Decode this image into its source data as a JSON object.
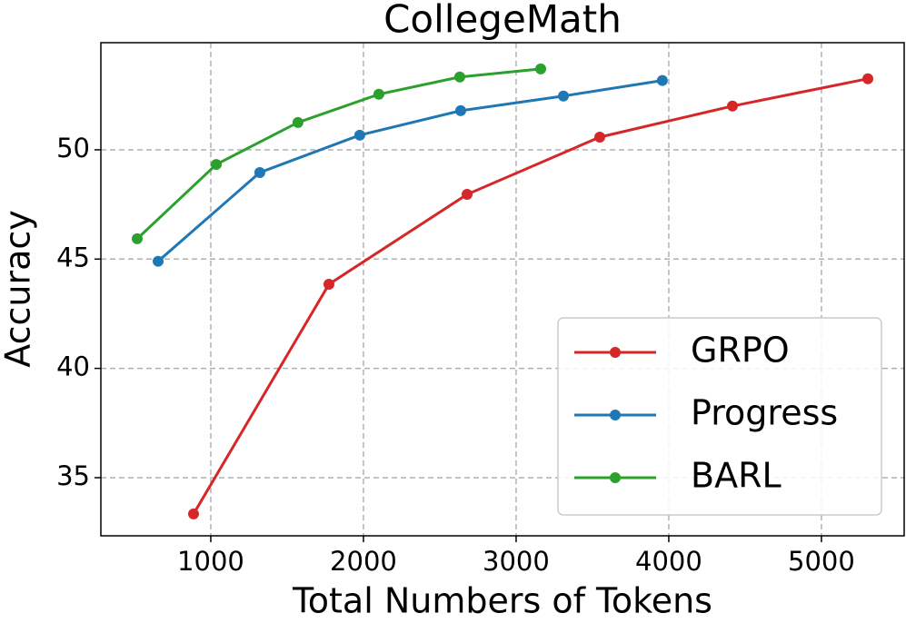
{
  "chart_data": {
    "type": "line",
    "title": "CollegeMath",
    "xlabel": "Total Numbers of Tokens",
    "ylabel": "Accuracy",
    "series": [
      {
        "name": "GRPO",
        "color": "#d62728",
        "x": [
          887,
          1774,
          2679,
          3548,
          4417,
          5304
        ],
        "values": [
          33.34,
          43.85,
          47.96,
          50.58,
          52.0,
          53.25
        ]
      },
      {
        "name": "Progress",
        "color": "#1f77b4",
        "x": [
          655,
          1321,
          1976,
          2637,
          3310,
          3958
        ],
        "values": [
          44.9,
          48.96,
          50.67,
          51.79,
          52.46,
          53.17
        ]
      },
      {
        "name": "BARL",
        "color": "#2ca02c",
        "x": [
          518,
          1036,
          1571,
          2101,
          2631,
          3161
        ],
        "values": [
          45.93,
          49.33,
          51.25,
          52.54,
          53.33,
          53.7
        ]
      }
    ],
    "xlim": [
      280,
      5542
    ],
    "xticks": [
      1000,
      2000,
      3000,
      4000,
      5000
    ],
    "ylim": [
      32.34,
      54.9
    ],
    "yticks": [
      35,
      40,
      45,
      50
    ],
    "grid": true,
    "legend": "lower right"
  }
}
